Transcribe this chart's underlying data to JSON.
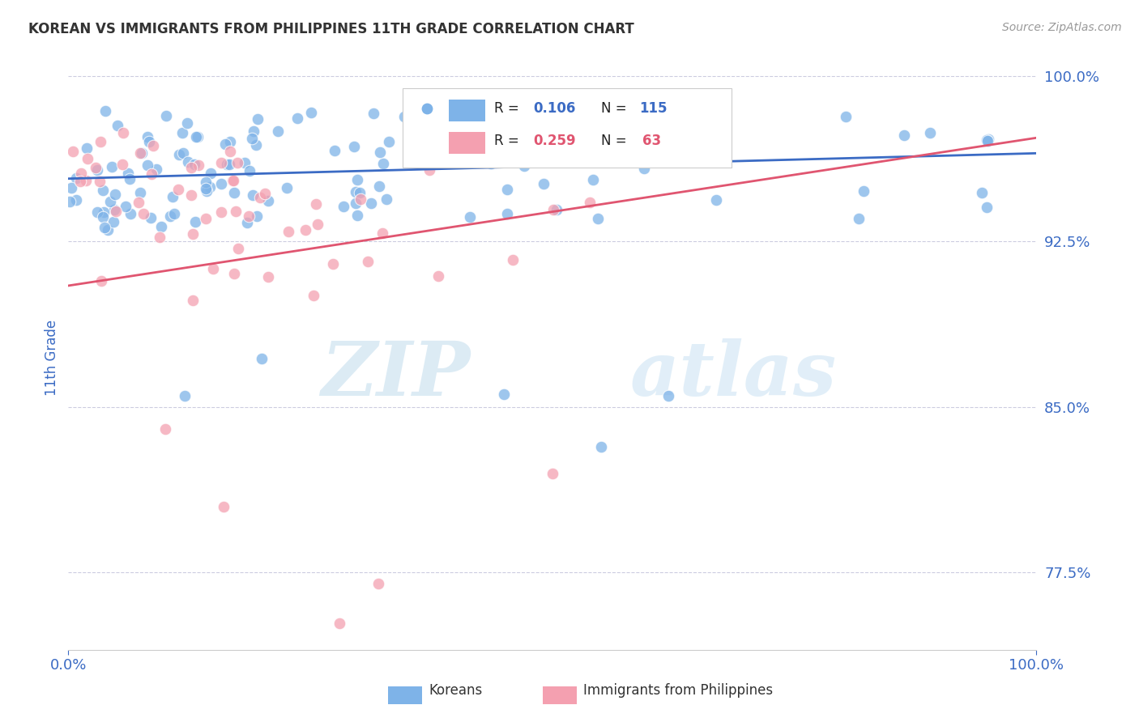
{
  "title": "KOREAN VS IMMIGRANTS FROM PHILIPPINES 11TH GRADE CORRELATION CHART",
  "source_text": "Source: ZipAtlas.com",
  "ylabel": "11th Grade",
  "x_min": 0.0,
  "x_max": 1.0,
  "y_min": 0.74,
  "y_max": 1.005,
  "y_ticks": [
    0.775,
    0.85,
    0.925,
    1.0
  ],
  "y_tick_labels": [
    "77.5%",
    "85.0%",
    "92.5%",
    "100.0%"
  ],
  "x_ticks": [
    0.0,
    1.0
  ],
  "x_tick_labels": [
    "0.0%",
    "100.0%"
  ],
  "blue_color": "#7EB3E8",
  "pink_color": "#F4A0B0",
  "blue_line_color": "#3B6BC4",
  "pink_line_color": "#E05570",
  "legend_label_blue": "Koreans",
  "legend_label_pink": "Immigrants from Philippines",
  "blue_trend_x": [
    0.0,
    1.0
  ],
  "blue_trend_y": [
    0.9535,
    0.965
  ],
  "pink_trend_x": [
    0.0,
    1.0
  ],
  "pink_trend_y": [
    0.905,
    0.972
  ],
  "watermark_zip": "ZIP",
  "watermark_atlas": "atlas",
  "background_color": "#ffffff",
  "grid_color": "#AAAACC",
  "title_color": "#333333",
  "tick_label_color": "#3B6BC4",
  "source_color": "#999999"
}
